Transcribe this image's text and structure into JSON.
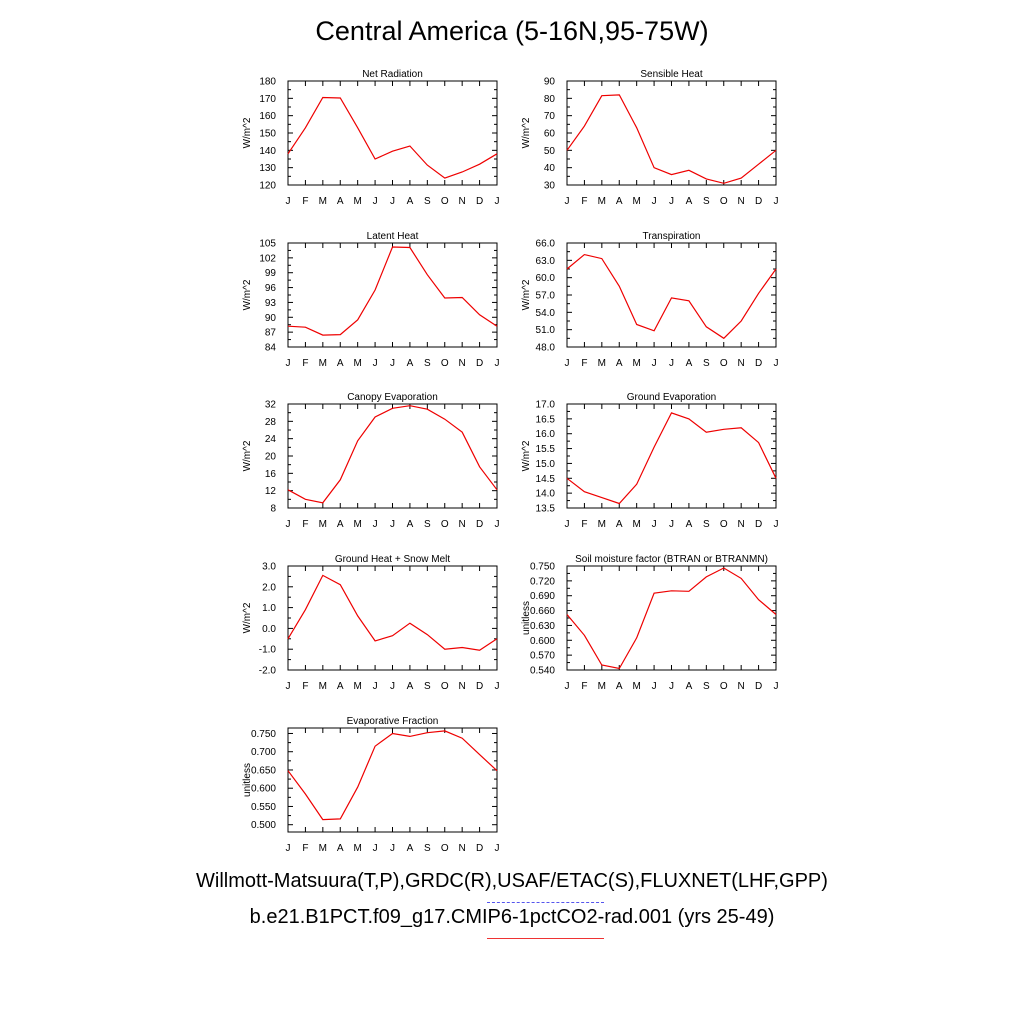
{
  "title": "Central America (5-16N,95-75W)",
  "legend": {
    "observations": "Willmott-Matsuura(T,P),GRDC(R),USAF/ETAC(S),FLUXNET(LHF,GPP)",
    "model": "b.e21.B1PCT.f09_g17.CMIP6-1pctCO2-rad.001 (yrs 25-49)",
    "observations_color": "#5555ee",
    "model_color": "#ee0000"
  },
  "chart_data": [
    {
      "type": "line",
      "title": "Net Radiation",
      "ylabel": "W/m^2",
      "categories": [
        "J",
        "F",
        "M",
        "A",
        "M",
        "J",
        "J",
        "A",
        "S",
        "O",
        "N",
        "D",
        "J"
      ],
      "ylim": [
        120,
        180
      ],
      "yticks": [
        "120",
        "130",
        "140",
        "150",
        "160",
        "170",
        "180"
      ],
      "series": [
        {
          "values": [
            138,
            153,
            170.5,
            170.2,
            153,
            135,
            139.5,
            142.5,
            131.5,
            124,
            127.5,
            132,
            138
          ],
          "color": "#ee0000"
        }
      ]
    },
    {
      "type": "line",
      "title": "Sensible Heat",
      "ylabel": "W/m^2",
      "categories": [
        "J",
        "F",
        "M",
        "A",
        "M",
        "J",
        "J",
        "A",
        "S",
        "O",
        "N",
        "D",
        "J"
      ],
      "ylim": [
        30,
        90
      ],
      "yticks": [
        "30",
        "40",
        "50",
        "60",
        "70",
        "80",
        "90"
      ],
      "series": [
        {
          "values": [
            50,
            64,
            81.5,
            82,
            63,
            40,
            36,
            38.5,
            33.5,
            31,
            34,
            42,
            50
          ],
          "color": "#ee0000"
        }
      ]
    },
    {
      "type": "line",
      "title": "Latent Heat",
      "ylabel": "W/m^2",
      "categories": [
        "J",
        "F",
        "M",
        "A",
        "M",
        "J",
        "J",
        "A",
        "S",
        "O",
        "N",
        "D",
        "J"
      ],
      "ylim": [
        84,
        105
      ],
      "yticks": [
        "84",
        "87",
        "90",
        "93",
        "96",
        "99",
        "102",
        "105"
      ],
      "series": [
        {
          "values": [
            88.2,
            88.0,
            86.4,
            86.5,
            89.5,
            95.5,
            104.2,
            104.1,
            98.6,
            93.9,
            94.0,
            90.5,
            88.2
          ],
          "color": "#ee0000"
        }
      ]
    },
    {
      "type": "line",
      "title": "Transpiration",
      "ylabel": "W/m^2",
      "categories": [
        "J",
        "F",
        "M",
        "A",
        "M",
        "J",
        "J",
        "A",
        "S",
        "O",
        "N",
        "D",
        "J"
      ],
      "ylim": [
        48,
        66
      ],
      "yticks": [
        "48.0",
        "51.0",
        "54.0",
        "57.0",
        "60.0",
        "63.0",
        "66.0"
      ],
      "series": [
        {
          "values": [
            61.5,
            64.0,
            63.3,
            58.5,
            51.9,
            50.8,
            56.5,
            56.0,
            51.5,
            49.5,
            52.5,
            57.3,
            61.5
          ],
          "color": "#ee0000"
        }
      ]
    },
    {
      "type": "line",
      "title": "Canopy Evaporation",
      "ylabel": "W/m^2",
      "categories": [
        "J",
        "F",
        "M",
        "A",
        "M",
        "J",
        "J",
        "A",
        "S",
        "O",
        "N",
        "D",
        "J"
      ],
      "ylim": [
        8,
        32
      ],
      "yticks": [
        "8",
        "12",
        "16",
        "20",
        "24",
        "28",
        "32"
      ],
      "series": [
        {
          "values": [
            12.2,
            10.0,
            9.2,
            14.5,
            23.5,
            29.0,
            31.0,
            31.6,
            30.8,
            28.5,
            25.5,
            17.5,
            12.2
          ],
          "color": "#ee0000"
        }
      ]
    },
    {
      "type": "line",
      "title": "Ground Evaporation",
      "ylabel": "W/m^2",
      "categories": [
        "J",
        "F",
        "M",
        "A",
        "M",
        "J",
        "J",
        "A",
        "S",
        "O",
        "N",
        "D",
        "J"
      ],
      "ylim": [
        13.5,
        17.0
      ],
      "yticks": [
        "13.5",
        "14.0",
        "14.5",
        "15.0",
        "15.5",
        "16.0",
        "16.5",
        "17.0"
      ],
      "series": [
        {
          "values": [
            14.5,
            14.05,
            13.85,
            13.65,
            14.3,
            15.55,
            16.7,
            16.5,
            16.05,
            16.15,
            16.2,
            15.7,
            14.5
          ],
          "color": "#ee0000"
        }
      ]
    },
    {
      "type": "line",
      "title": "Ground Heat + Snow Melt",
      "ylabel": "W/m^2",
      "categories": [
        "J",
        "F",
        "M",
        "A",
        "M",
        "J",
        "J",
        "A",
        "S",
        "O",
        "N",
        "D",
        "J"
      ],
      "ylim": [
        -2.0,
        3.0
      ],
      "yticks": [
        "-2.0",
        "-1.0",
        "0.0",
        "1.0",
        "2.0",
        "3.0"
      ],
      "series": [
        {
          "values": [
            -0.5,
            0.9,
            2.55,
            2.1,
            0.6,
            -0.6,
            -0.35,
            0.25,
            -0.3,
            -1.0,
            -0.92,
            -1.05,
            -0.5
          ],
          "color": "#ee0000"
        }
      ]
    },
    {
      "type": "line",
      "title": "Soil moisture factor (BTRAN or BTRANMN)",
      "ylabel": "unitless",
      "categories": [
        "J",
        "F",
        "M",
        "A",
        "M",
        "J",
        "J",
        "A",
        "S",
        "O",
        "N",
        "D",
        "J"
      ],
      "ylim": [
        0.54,
        0.75
      ],
      "yticks": [
        "0.540",
        "0.570",
        "0.600",
        "0.630",
        "0.660",
        "0.690",
        "0.720",
        "0.750"
      ],
      "series": [
        {
          "values": [
            0.652,
            0.61,
            0.55,
            0.543,
            0.605,
            0.695,
            0.7,
            0.699,
            0.728,
            0.746,
            0.725,
            0.682,
            0.652
          ],
          "color": "#ee0000"
        }
      ]
    },
    {
      "type": "line",
      "title": "Evaporative Fraction",
      "ylabel": "unitless",
      "categories": [
        "J",
        "F",
        "M",
        "A",
        "M",
        "J",
        "J",
        "A",
        "S",
        "O",
        "N",
        "D",
        "J"
      ],
      "ylim": [
        0.48,
        0.765
      ],
      "yticks": [
        "0.500",
        "0.550",
        "0.600",
        "0.650",
        "0.700",
        "0.750"
      ],
      "series": [
        {
          "values": [
            0.648,
            0.584,
            0.514,
            0.516,
            0.603,
            0.715,
            0.75,
            0.742,
            0.752,
            0.757,
            0.737,
            0.692,
            0.648
          ],
          "color": "#ee0000"
        }
      ]
    }
  ]
}
